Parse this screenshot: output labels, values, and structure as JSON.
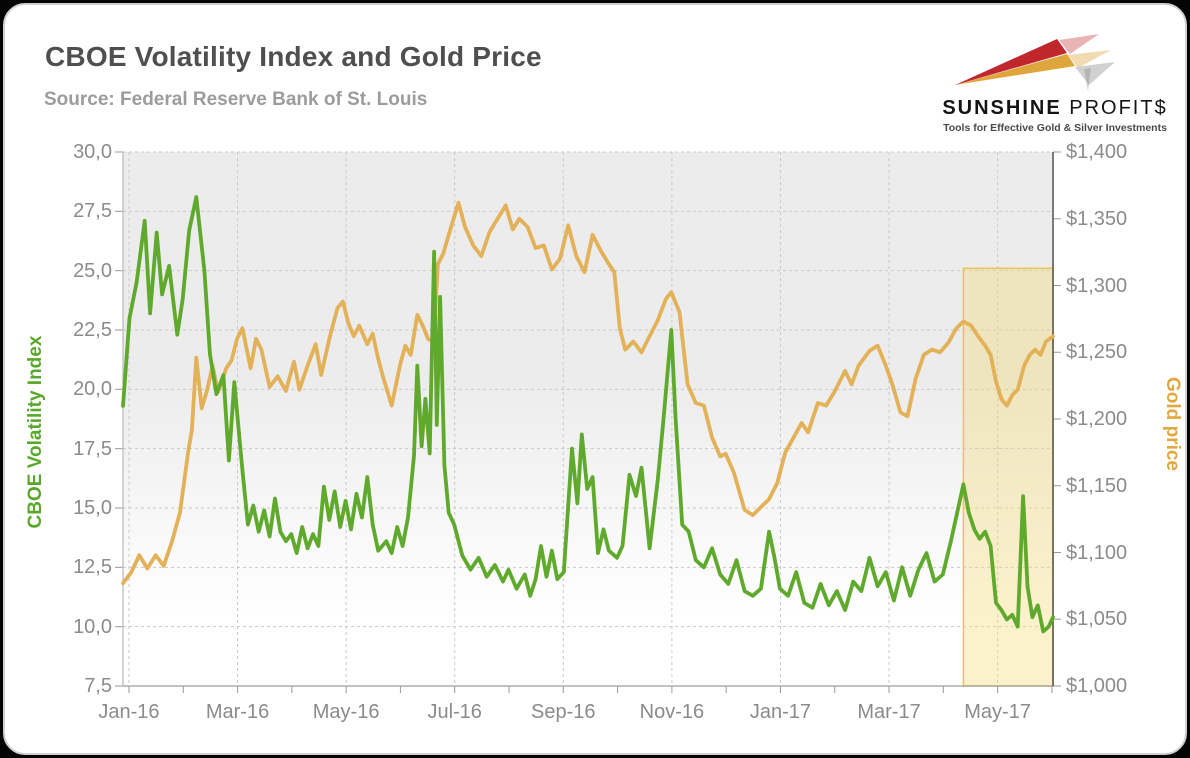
{
  "header": {
    "title": "CBOE Volatility Index and Gold Price",
    "source": "Source: Federal Reserve Bank of St. Louis"
  },
  "logo": {
    "name_part1": "SUNSHINE",
    "name_part2": "PROFIT$",
    "tagline": "Tools for Effective Gold & Silver Investments",
    "colors": {
      "red": "#c0272d",
      "gold": "#dfa53d",
      "silver": "#c6c6c6"
    }
  },
  "colors": {
    "vix_line": "#5faa2d",
    "gold_line": "#e2b158",
    "left_axis_label": "#5aa82a",
    "right_axis_label": "#e0a83e",
    "grid": "#c9c9c9",
    "tick_text": "#8b8b8b"
  },
  "chart_data": {
    "type": "line",
    "title": "CBOE Volatility Index and Gold Price",
    "grid": "dashed, both axes",
    "legend_position": "none (axis labels colored to match lines)",
    "x_axis": {
      "range_months": [
        0,
        17.13
      ],
      "ticks": [
        "Jan-16",
        "Mar-16",
        "May-16",
        "Jul-16",
        "Sep-16",
        "Nov-16",
        "Jan-17",
        "Mar-17",
        "May-17"
      ],
      "tick_month_positions": [
        0.11,
        2.11,
        4.11,
        6.11,
        8.11,
        10.11,
        12.11,
        14.11,
        16.11
      ],
      "minor_tick_months": [
        0.11,
        1.11,
        2.11,
        3.11,
        4.11,
        5.11,
        6.11,
        7.11,
        8.11,
        9.11,
        10.11,
        11.11,
        12.11,
        13.11,
        14.11,
        15.11,
        16.11,
        17.11
      ]
    },
    "y_left": {
      "label": "CBOE Volatility Index",
      "range": [
        7.5,
        30
      ],
      "values": [
        30,
        27.5,
        25,
        22.5,
        20,
        17.5,
        15,
        12.5,
        10,
        7.5
      ],
      "ticks": [
        "30,0",
        "27,5",
        "25,0",
        "22,5",
        "20,0",
        "17,5",
        "15,0",
        "12,5",
        "10,0",
        "7,5"
      ],
      "color": "#5aa82a"
    },
    "y_right": {
      "label": "Gold price",
      "range": [
        1000,
        1400
      ],
      "values": [
        1400,
        1350,
        1300,
        1250,
        1200,
        1150,
        1100,
        1050,
        1000
      ],
      "ticks": [
        "$1,400",
        "$1,350",
        "$1,300",
        "$1,250",
        "$1,200",
        "$1,150",
        "$1,100",
        "$1,050",
        "$1,000"
      ],
      "color": "#e0a83e"
    },
    "highlight_region": {
      "x_start_month": 15.48,
      "x_end_month": 17.13,
      "y_top_left_axis": 25.1,
      "y_bottom_left_axis": 7.5,
      "fill": "rgba(244,218,110,0.35)",
      "border": "#ebc450"
    },
    "series": [
      {
        "name": "Gold price",
        "axis": "right",
        "color": "#e2b158",
        "points": [
          [
            0,
            1077
          ],
          [
            0.15,
            1085
          ],
          [
            0.3,
            1098
          ],
          [
            0.45,
            1088
          ],
          [
            0.6,
            1098
          ],
          [
            0.75,
            1090
          ],
          [
            0.9,
            1108
          ],
          [
            1.05,
            1130
          ],
          [
            1.2,
            1175
          ],
          [
            1.27,
            1192
          ],
          [
            1.35,
            1246
          ],
          [
            1.45,
            1208
          ],
          [
            1.55,
            1222
          ],
          [
            1.65,
            1240
          ],
          [
            1.75,
            1220
          ],
          [
            1.9,
            1238
          ],
          [
            2,
            1244
          ],
          [
            2.1,
            1260
          ],
          [
            2.2,
            1268
          ],
          [
            2.35,
            1238
          ],
          [
            2.45,
            1260
          ],
          [
            2.55,
            1252
          ],
          [
            2.7,
            1224
          ],
          [
            2.85,
            1232
          ],
          [
            3,
            1221
          ],
          [
            3.15,
            1243
          ],
          [
            3.25,
            1222
          ],
          [
            3.4,
            1240
          ],
          [
            3.55,
            1256
          ],
          [
            3.65,
            1233
          ],
          [
            3.8,
            1260
          ],
          [
            3.95,
            1283
          ],
          [
            4.05,
            1288
          ],
          [
            4.15,
            1272
          ],
          [
            4.25,
            1262
          ],
          [
            4.35,
            1270
          ],
          [
            4.5,
            1256
          ],
          [
            4.6,
            1264
          ],
          [
            4.7,
            1245
          ],
          [
            4.8,
            1230
          ],
          [
            4.95,
            1210
          ],
          [
            5.1,
            1240
          ],
          [
            5.2,
            1255
          ],
          [
            5.3,
            1248
          ],
          [
            5.42,
            1278
          ],
          [
            5.52,
            1270
          ],
          [
            5.62,
            1260
          ],
          [
            5.72,
            1258
          ],
          [
            5.8,
            1316
          ],
          [
            5.9,
            1324
          ],
          [
            6,
            1338
          ],
          [
            6.18,
            1362
          ],
          [
            6.3,
            1344
          ],
          [
            6.45,
            1330
          ],
          [
            6.6,
            1322
          ],
          [
            6.75,
            1340
          ],
          [
            6.9,
            1350
          ],
          [
            7.05,
            1360
          ],
          [
            7.18,
            1342
          ],
          [
            7.3,
            1350
          ],
          [
            7.45,
            1344
          ],
          [
            7.6,
            1328
          ],
          [
            7.75,
            1330
          ],
          [
            7.9,
            1312
          ],
          [
            8.05,
            1320
          ],
          [
            8.2,
            1345
          ],
          [
            8.35,
            1322
          ],
          [
            8.5,
            1310
          ],
          [
            8.65,
            1338
          ],
          [
            8.8,
            1326
          ],
          [
            8.95,
            1316
          ],
          [
            9.05,
            1310
          ],
          [
            9.15,
            1268
          ],
          [
            9.25,
            1252
          ],
          [
            9.4,
            1258
          ],
          [
            9.55,
            1250
          ],
          [
            9.7,
            1262
          ],
          [
            9.85,
            1274
          ],
          [
            10,
            1290
          ],
          [
            10.1,
            1295
          ],
          [
            10.25,
            1280
          ],
          [
            10.4,
            1226
          ],
          [
            10.55,
            1212
          ],
          [
            10.7,
            1210
          ],
          [
            10.85,
            1186
          ],
          [
            11,
            1172
          ],
          [
            11.1,
            1174
          ],
          [
            11.25,
            1160
          ],
          [
            11.45,
            1132
          ],
          [
            11.6,
            1128
          ],
          [
            11.75,
            1134
          ],
          [
            11.9,
            1140
          ],
          [
            12.05,
            1152
          ],
          [
            12.2,
            1175
          ],
          [
            12.35,
            1186
          ],
          [
            12.5,
            1197
          ],
          [
            12.62,
            1190
          ],
          [
            12.8,
            1212
          ],
          [
            12.95,
            1210
          ],
          [
            13.1,
            1220
          ],
          [
            13.3,
            1236
          ],
          [
            13.42,
            1226
          ],
          [
            13.55,
            1240
          ],
          [
            13.75,
            1251
          ],
          [
            13.9,
            1255
          ],
          [
            14.05,
            1240
          ],
          [
            14.18,
            1225
          ],
          [
            14.32,
            1205
          ],
          [
            14.45,
            1202
          ],
          [
            14.6,
            1230
          ],
          [
            14.75,
            1248
          ],
          [
            14.9,
            1252
          ],
          [
            15.05,
            1250
          ],
          [
            15.2,
            1257
          ],
          [
            15.35,
            1268
          ],
          [
            15.48,
            1273
          ],
          [
            15.62,
            1270
          ],
          [
            15.75,
            1262
          ],
          [
            15.88,
            1255
          ],
          [
            15.98,
            1248
          ],
          [
            16.08,
            1228
          ],
          [
            16.18,
            1215
          ],
          [
            16.28,
            1210
          ],
          [
            16.38,
            1218
          ],
          [
            16.48,
            1222
          ],
          [
            16.6,
            1240
          ],
          [
            16.7,
            1248
          ],
          [
            16.8,
            1252
          ],
          [
            16.9,
            1248
          ],
          [
            17,
            1258
          ],
          [
            17.13,
            1262
          ]
        ]
      },
      {
        "name": "CBOE Volatility Index",
        "axis": "left",
        "color": "#5faa2d",
        "points": [
          [
            0,
            19.3
          ],
          [
            0.12,
            23
          ],
          [
            0.25,
            24.5
          ],
          [
            0.4,
            27.1
          ],
          [
            0.5,
            23.2
          ],
          [
            0.62,
            26.6
          ],
          [
            0.72,
            24
          ],
          [
            0.85,
            25.2
          ],
          [
            1,
            22.3
          ],
          [
            1.1,
            23.8
          ],
          [
            1.22,
            26.7
          ],
          [
            1.35,
            28.1
          ],
          [
            1.5,
            25
          ],
          [
            1.6,
            21.5
          ],
          [
            1.72,
            19.8
          ],
          [
            1.85,
            20.6
          ],
          [
            1.95,
            17
          ],
          [
            2.05,
            20.3
          ],
          [
            2.2,
            16.6
          ],
          [
            2.3,
            14.3
          ],
          [
            2.4,
            15.1
          ],
          [
            2.5,
            14
          ],
          [
            2.6,
            14.9
          ],
          [
            2.7,
            13.8
          ],
          [
            2.8,
            15.4
          ],
          [
            2.9,
            14
          ],
          [
            3,
            13.6
          ],
          [
            3.1,
            13.9
          ],
          [
            3.2,
            13.1
          ],
          [
            3.3,
            14.2
          ],
          [
            3.4,
            13.3
          ],
          [
            3.5,
            13.9
          ],
          [
            3.6,
            13.4
          ],
          [
            3.7,
            15.9
          ],
          [
            3.8,
            14.5
          ],
          [
            3.9,
            15.7
          ],
          [
            4,
            14.2
          ],
          [
            4.1,
            15.3
          ],
          [
            4.2,
            14.1
          ],
          [
            4.3,
            15.6
          ],
          [
            4.4,
            14.6
          ],
          [
            4.5,
            16.3
          ],
          [
            4.6,
            14.3
          ],
          [
            4.7,
            13.2
          ],
          [
            4.85,
            13.6
          ],
          [
            4.95,
            13.1
          ],
          [
            5.05,
            14.2
          ],
          [
            5.15,
            13.4
          ],
          [
            5.25,
            14.6
          ],
          [
            5.36,
            17.2
          ],
          [
            5.42,
            21
          ],
          [
            5.5,
            17.6
          ],
          [
            5.57,
            19.6
          ],
          [
            5.65,
            17.3
          ],
          [
            5.73,
            25.8
          ],
          [
            5.78,
            18.5
          ],
          [
            5.84,
            23.9
          ],
          [
            5.92,
            16.8
          ],
          [
            6,
            14.8
          ],
          [
            6.1,
            14.3
          ],
          [
            6.25,
            13
          ],
          [
            6.4,
            12.4
          ],
          [
            6.55,
            12.9
          ],
          [
            6.7,
            12.1
          ],
          [
            6.85,
            12.6
          ],
          [
            7,
            11.9
          ],
          [
            7.1,
            12.4
          ],
          [
            7.25,
            11.6
          ],
          [
            7.4,
            12.2
          ],
          [
            7.5,
            11.3
          ],
          [
            7.6,
            12
          ],
          [
            7.7,
            13.4
          ],
          [
            7.8,
            12.1
          ],
          [
            7.9,
            13.2
          ],
          [
            8,
            12
          ],
          [
            8.12,
            12.3
          ],
          [
            8.27,
            17.5
          ],
          [
            8.37,
            15.2
          ],
          [
            8.45,
            18.1
          ],
          [
            8.55,
            15.8
          ],
          [
            8.65,
            16.3
          ],
          [
            8.75,
            13.1
          ],
          [
            8.85,
            14.1
          ],
          [
            8.95,
            13.2
          ],
          [
            9.1,
            12.9
          ],
          [
            9.2,
            13.4
          ],
          [
            9.33,
            16.4
          ],
          [
            9.45,
            15.5
          ],
          [
            9.55,
            16.7
          ],
          [
            9.7,
            13.3
          ],
          [
            9.85,
            16.2
          ],
          [
            9.95,
            18.6
          ],
          [
            10.1,
            22.5
          ],
          [
            10.18,
            18.7
          ],
          [
            10.3,
            14.3
          ],
          [
            10.42,
            14
          ],
          [
            10.55,
            12.8
          ],
          [
            10.7,
            12.5
          ],
          [
            10.85,
            13.3
          ],
          [
            11,
            12.2
          ],
          [
            11.15,
            11.8
          ],
          [
            11.3,
            12.8
          ],
          [
            11.45,
            11.5
          ],
          [
            11.6,
            11.3
          ],
          [
            11.75,
            11.6
          ],
          [
            11.9,
            14
          ],
          [
            12,
            12.9
          ],
          [
            12.1,
            11.6
          ],
          [
            12.25,
            11.3
          ],
          [
            12.4,
            12.3
          ],
          [
            12.55,
            11
          ],
          [
            12.7,
            10.8
          ],
          [
            12.85,
            11.8
          ],
          [
            13,
            10.9
          ],
          [
            13.15,
            11.5
          ],
          [
            13.3,
            10.7
          ],
          [
            13.45,
            11.9
          ],
          [
            13.6,
            11.5
          ],
          [
            13.75,
            12.9
          ],
          [
            13.9,
            11.7
          ],
          [
            14.05,
            12.3
          ],
          [
            14.2,
            11.1
          ],
          [
            14.35,
            12.5
          ],
          [
            14.5,
            11.3
          ],
          [
            14.65,
            12.4
          ],
          [
            14.8,
            13.1
          ],
          [
            14.95,
            11.9
          ],
          [
            15.1,
            12.2
          ],
          [
            15.25,
            13.6
          ],
          [
            15.48,
            16
          ],
          [
            15.58,
            14.8
          ],
          [
            15.68,
            14.1
          ],
          [
            15.78,
            13.7
          ],
          [
            15.88,
            14
          ],
          [
            15.98,
            13.4
          ],
          [
            16.08,
            11
          ],
          [
            16.18,
            10.7
          ],
          [
            16.28,
            10.3
          ],
          [
            16.38,
            10.5
          ],
          [
            16.48,
            10
          ],
          [
            16.58,
            15.5
          ],
          [
            16.66,
            11.7
          ],
          [
            16.75,
            10.4
          ],
          [
            16.85,
            10.9
          ],
          [
            16.95,
            9.8
          ],
          [
            17.05,
            10
          ],
          [
            17.13,
            10.4
          ]
        ]
      }
    ]
  }
}
